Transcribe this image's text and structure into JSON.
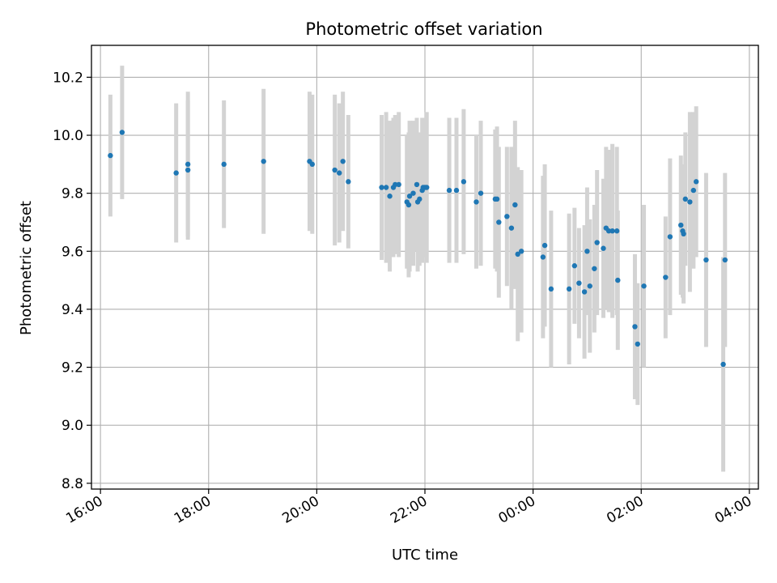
{
  "chart_data": {
    "type": "scatter",
    "title": "Photometric offset variation",
    "xlabel": "UTC time",
    "ylabel": "Photometric offset",
    "x_unit": "UTC time",
    "xlim": [
      "15:50",
      "04:10"
    ],
    "ylim": [
      8.78,
      10.31
    ],
    "x_ticks": [
      "16:00",
      "18:00",
      "20:00",
      "22:00",
      "00:00",
      "02:00",
      "04:00"
    ],
    "y_ticks": [
      "8.8",
      "9.0",
      "9.2",
      "9.4",
      "9.6",
      "9.8",
      "10.0",
      "10.2"
    ],
    "grid": true,
    "colors": {
      "point": "#1f77b4",
      "errorbar": "#d3d3d3",
      "grid": "#b0b0b0"
    },
    "series": [
      {
        "x": [
          "16:11",
          "16:24",
          "17:24",
          "17:37",
          "17:37",
          "18:17",
          "19:01",
          "19:52",
          "19:55",
          "20:20",
          "20:25",
          "20:29",
          "20:35",
          "21:12",
          "21:17",
          "21:21",
          "21:25",
          "21:27",
          "21:31",
          "21:40",
          "21:42",
          "21:43",
          "21:47",
          "21:51",
          "21:52",
          "21:54",
          "21:57",
          "21:58",
          "22:00",
          "22:02",
          "22:27",
          "22:35",
          "22:43",
          "22:57",
          "23:02",
          "23:18",
          "23:20",
          "23:22",
          "23:31",
          "23:36",
          "23:40",
          "23:43",
          "23:47",
          "00:11",
          "00:13",
          "00:20",
          "00:40",
          "00:46",
          "00:51",
          "00:57",
          "01:00",
          "01:03",
          "01:08",
          "01:11",
          "01:18",
          "01:21",
          "01:24",
          "01:28",
          "01:33",
          "01:34",
          "01:53",
          "01:56",
          "02:03",
          "02:27",
          "02:32",
          "02:44",
          "02:46",
          "02:47",
          "02:49",
          "02:54",
          "02:58",
          "03:01",
          "03:12",
          "03:31",
          "03:33"
        ],
        "y": [
          9.93,
          10.01,
          9.87,
          9.88,
          9.9,
          9.9,
          9.91,
          9.91,
          9.9,
          9.88,
          9.87,
          9.91,
          9.84,
          9.82,
          9.82,
          9.79,
          9.82,
          9.83,
          9.83,
          9.77,
          9.76,
          9.79,
          9.8,
          9.83,
          9.77,
          9.78,
          9.81,
          9.82,
          9.82,
          9.82,
          9.81,
          9.81,
          9.84,
          9.77,
          9.8,
          9.78,
          9.78,
          9.7,
          9.72,
          9.68,
          9.76,
          9.59,
          9.6,
          9.58,
          9.62,
          9.47,
          9.47,
          9.55,
          9.49,
          9.46,
          9.6,
          9.48,
          9.54,
          9.63,
          9.61,
          9.68,
          9.67,
          9.67,
          9.67,
          9.5,
          9.34,
          9.28,
          9.48,
          9.51,
          9.65,
          9.69,
          9.67,
          9.66,
          9.78,
          9.77,
          9.81,
          9.84,
          9.57,
          9.21,
          9.57
        ],
        "error": [
          0.21,
          0.23,
          0.24,
          0.24,
          0.25,
          0.22,
          0.25,
          0.24,
          0.24,
          0.26,
          0.24,
          0.24,
          0.23,
          0.25,
          0.26,
          0.26,
          0.24,
          0.24,
          0.25,
          0.23,
          0.25,
          0.26,
          0.25,
          0.23,
          0.24,
          0.23,
          0.25,
          0.24,
          0.24,
          0.26,
          0.25,
          0.25,
          0.25,
          0.23,
          0.25,
          0.24,
          0.25,
          0.26,
          0.24,
          0.28,
          0.29,
          0.3,
          0.28,
          0.28,
          0.28,
          0.27,
          0.26,
          0.2,
          0.19,
          0.23,
          0.22,
          0.23,
          0.22,
          0.25,
          0.24,
          0.28,
          0.28,
          0.3,
          0.29,
          0.24,
          0.25,
          0.21,
          0.28,
          0.21,
          0.27,
          0.24,
          0.23,
          0.24,
          0.23,
          0.31,
          0.27,
          0.26,
          0.3,
          0.37,
          0.3
        ]
      }
    ]
  }
}
